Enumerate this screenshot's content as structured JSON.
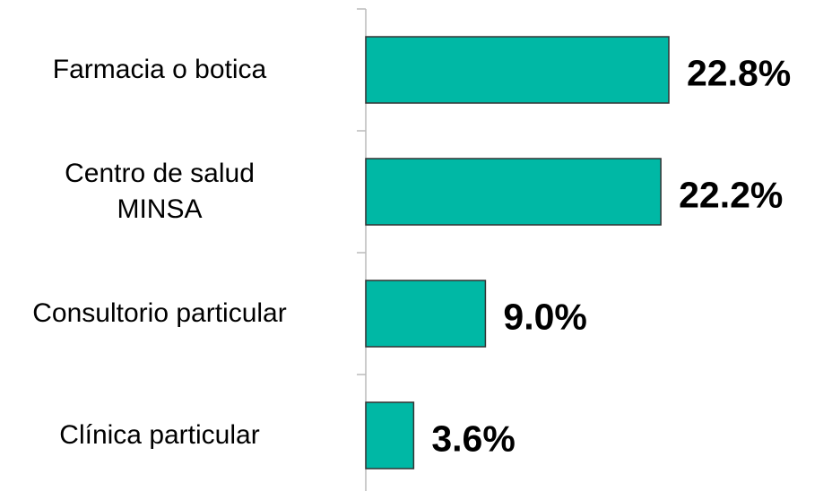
{
  "chart_data": {
    "type": "bar",
    "orientation": "horizontal",
    "categories": [
      "Farmacia o botica",
      "Centro de salud\nMINSA",
      "Consultorio particular",
      "Clínica particular"
    ],
    "values": [
      22.8,
      22.2,
      9.0,
      3.6
    ],
    "value_labels": [
      "22.8%",
      "22.2%",
      "9.0%",
      "3.6%"
    ],
    "color": "#00b8a5"
  }
}
